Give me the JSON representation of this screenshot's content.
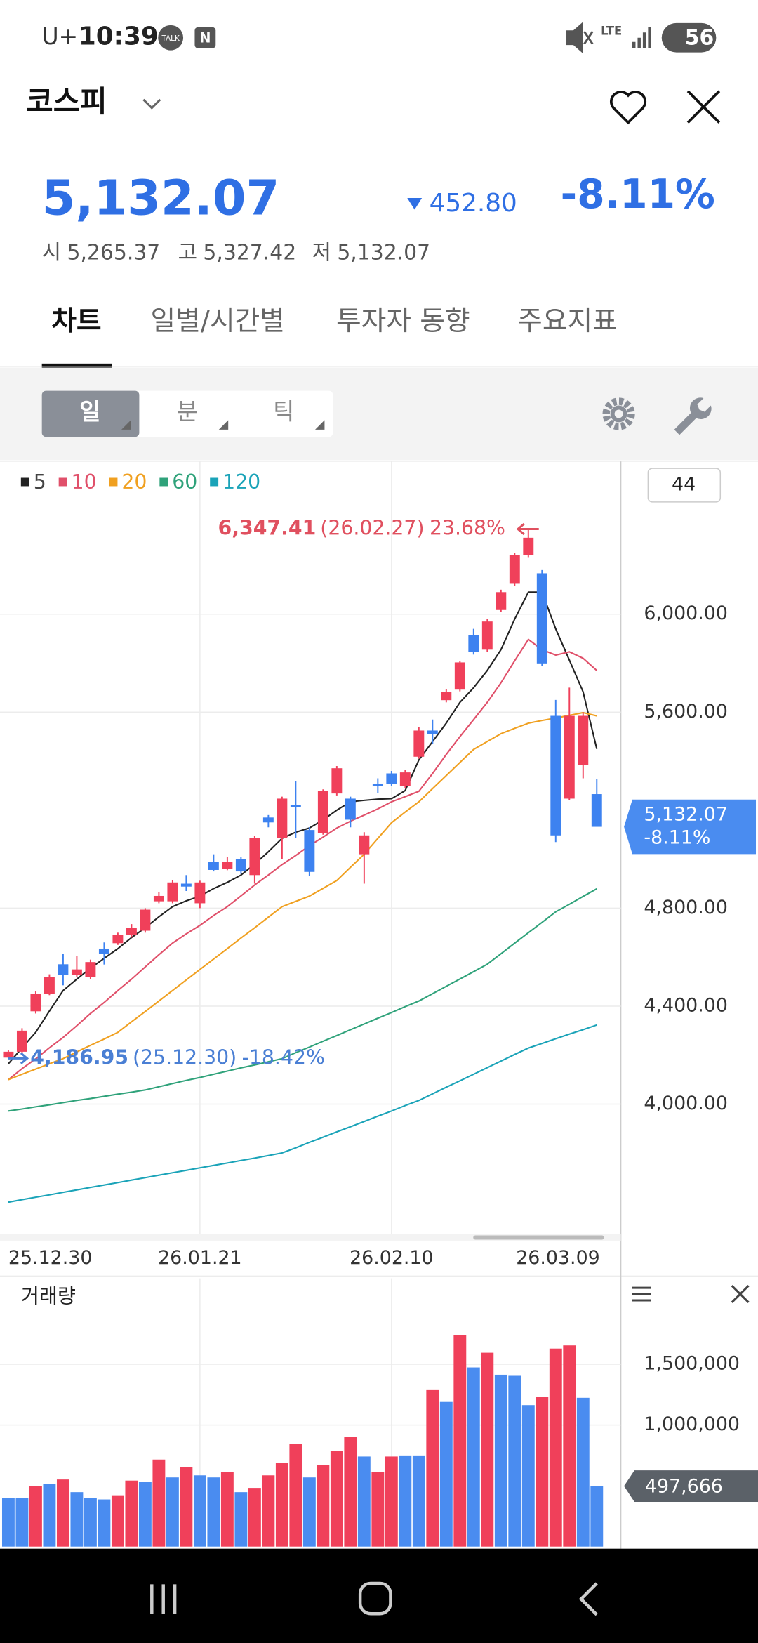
{
  "status_bar": {
    "carrier": "U+",
    "time": "10:39",
    "talk_icon": "TALK",
    "n_icon": "N",
    "network": "LTE",
    "battery": "56"
  },
  "header": {
    "title": "코스피"
  },
  "quote": {
    "price": "5,132.07",
    "change": "452.80",
    "change_pct": "-8.11%",
    "open_label": "시",
    "open": "5,265.37",
    "high_label": "고",
    "high": "5,327.42",
    "low_label": "저",
    "low": "5,132.07"
  },
  "tabs": [
    "차트",
    "일별/시간별",
    "투자자 동향",
    "주요지표"
  ],
  "periods": [
    "일",
    "분",
    "틱"
  ],
  "chart_data": [
    {
      "type": "candlestick",
      "visible_count": "44",
      "categories": [
        "25.12.30",
        null,
        null,
        null,
        null,
        null,
        null,
        null,
        null,
        null,
        null,
        null,
        null,
        null,
        "26.01.21",
        null,
        null,
        null,
        null,
        null,
        null,
        null,
        null,
        null,
        null,
        null,
        null,
        null,
        "26.02.10",
        null,
        null,
        null,
        null,
        null,
        null,
        null,
        null,
        null,
        null,
        null,
        null,
        null,
        null,
        "26.03.09"
      ],
      "open": [
        4190,
        4214,
        4379,
        4451,
        4571,
        4528,
        4520,
        4635,
        4657,
        4690,
        4708,
        4828,
        4828,
        4900,
        4820,
        4990,
        4960,
        4999,
        4935,
        5170,
        5085,
        5221,
        5119,
        5106,
        5268,
        5247,
        5020,
        5307,
        5350,
        5298,
        5418,
        5525,
        5649,
        5692,
        5914,
        5855,
        6017,
        6124,
        6240,
        6167,
        5585,
        5247,
        5384,
        5265.37
      ],
      "high": [
        4222,
        4310,
        4460,
        4530,
        4614,
        4605,
        4590,
        4660,
        4700,
        4735,
        4800,
        4865,
        4915,
        4935,
        4912,
        5020,
        5010,
        5010,
        5095,
        5180,
        5255,
        5320,
        5130,
        5285,
        5380,
        5255,
        5110,
        5330,
        5360,
        5365,
        5540,
        5570,
        5695,
        5810,
        5940,
        5980,
        6100,
        6250,
        6347.41,
        6180,
        5650,
        5700,
        5600,
        5327.42
      ],
      "low": [
        4186.95,
        4205,
        4370,
        4445,
        4485,
        4520,
        4510,
        4570,
        4650,
        4680,
        4700,
        4820,
        4820,
        4870,
        4800,
        4950,
        4955,
        4940,
        4900,
        5130,
        5000,
        5085,
        4930,
        5100,
        5260,
        5130,
        4900,
        5270,
        5300,
        5290,
        5410,
        5470,
        5640,
        5685,
        5835,
        5845,
        6010,
        6115,
        6230,
        5790,
        5070,
        5240,
        5330,
        5132.07
      ],
      "close": [
        4214,
        4300,
        4451,
        4520,
        4528,
        4550,
        4580,
        4614,
        4690,
        4720,
        4794,
        4850,
        4905,
        4888,
        4905,
        4956,
        4990,
        4950,
        5085,
        5150,
        5247,
        5213,
        4948,
        5277,
        5371,
        5161,
        5097,
        5298,
        5307,
        5354,
        5525,
        5512,
        5683,
        5803,
        5846,
        5970,
        6090,
        6240,
        6312,
        5799,
        5097,
        5585,
        5585,
        5132.07
      ],
      "up_color": "#f0405a",
      "down_color": "#3d82f0",
      "series": [
        {
          "name": "5",
          "color": "#222222",
          "values": [
            4165,
            4230,
            4293,
            4380,
            4464,
            4510,
            4555,
            4595,
            4635,
            4680,
            4720,
            4765,
            4806,
            4830,
            4849,
            4880,
            4905,
            4935,
            4980,
            5030,
            5085,
            5110,
            5127,
            5160,
            5200,
            5234,
            5240,
            5245,
            5247,
            5280,
            5405,
            5480,
            5555,
            5640,
            5700,
            5770,
            5855,
            5980,
            6090,
            6090,
            5940,
            5812,
            5683,
            5450
          ]
        },
        {
          "name": "10",
          "color": "#e0506a",
          "values": [
            4100,
            4145,
            4185,
            4230,
            4272,
            4320,
            4370,
            4415,
            4464,
            4510,
            4560,
            4610,
            4657,
            4695,
            4730,
            4770,
            4806,
            4850,
            4895,
            4935,
            4978,
            5015,
            5055,
            5090,
            5127,
            5155,
            5180,
            5205,
            5234,
            5255,
            5277,
            5350,
            5427,
            5500,
            5570,
            5640,
            5720,
            5810,
            5897,
            5855,
            5833,
            5846,
            5820,
            5770
          ]
        },
        {
          "name": "20",
          "color": "#f0a020",
          "values": [
            4100,
            4122,
            4143,
            4165,
            4186,
            4213,
            4240,
            4266,
            4293,
            4336,
            4378,
            4421,
            4464,
            4507,
            4550,
            4592,
            4635,
            4678,
            4720,
            4763,
            4806,
            4828,
            4849,
            4881,
            4913,
            4967,
            5020,
            5085,
            5149,
            5192,
            5234,
            5288,
            5341,
            5395,
            5448,
            5480,
            5512,
            5534,
            5555,
            5566,
            5576,
            5587,
            5598,
            5585
          ]
        },
        {
          "name": "60",
          "color": "#2fa27a",
          "values": [
            3972,
            3980,
            3989,
            3997,
            4006,
            4015,
            4023,
            4032,
            4041,
            4049,
            4058,
            4071,
            4084,
            4097,
            4109,
            4122,
            4135,
            4148,
            4160,
            4173,
            4186,
            4210,
            4233,
            4257,
            4280,
            4304,
            4327,
            4351,
            4374,
            4398,
            4421,
            4451,
            4481,
            4511,
            4541,
            4571,
            4614,
            4657,
            4700,
            4742,
            4785,
            4816,
            4848,
            4879
          ]
        },
        {
          "name": "120",
          "color": "#1aa3b8",
          "values": [
            3600,
            3610,
            3620,
            3630,
            3640,
            3650,
            3660,
            3670,
            3680,
            3690,
            3700,
            3710,
            3720,
            3730,
            3740,
            3750,
            3760,
            3770,
            3780,
            3790,
            3801,
            3822,
            3844,
            3865,
            3887,
            3908,
            3929,
            3951,
            3972,
            3994,
            4015,
            4042,
            4069,
            4095,
            4122,
            4149,
            4176,
            4203,
            4229,
            4248,
            4267,
            4286,
            4304,
            4323
          ]
        }
      ],
      "ylim": [
        3460,
        6625
      ],
      "yticks": [
        {
          "value": 4000,
          "label": "4,000.00"
        },
        {
          "value": 4400,
          "label": "4,400.00"
        },
        {
          "value": 4800,
          "label": "4,800.00"
        },
        {
          "value": 5600,
          "label": "5,600.00"
        },
        {
          "value": 6000,
          "label": "6,000.00"
        }
      ],
      "grid": true,
      "max_annotation": {
        "index": 38,
        "value": 6347.41,
        "label": "6,347.41",
        "date": "(26.02.27)",
        "pct": "23.68%",
        "color": "#e0505f"
      },
      "min_annotation": {
        "index": 0,
        "value": 4186.95,
        "label": "4,186.95",
        "date": "(25.12.30)",
        "pct": "-18.42%",
        "color": "#4a7fd4"
      },
      "current": {
        "value": 5132.07,
        "label": "5,132.07",
        "pct": "-8.11%",
        "color": "#4a8cf0"
      }
    },
    {
      "type": "bar",
      "title": "거래량",
      "values": [
        397000,
        397000,
        500000,
        517000,
        552000,
        448000,
        397000,
        388000,
        422000,
        543000,
        534000,
        716000,
        569000,
        655000,
        586000,
        569000,
        612000,
        448000,
        483000,
        586000,
        690000,
        845000,
        569000,
        672000,
        784000,
        905000,
        741000,
        612000,
        741000,
        750000,
        750000,
        1293000,
        1190000,
        1741000,
        1474000,
        1595000,
        1414000,
        1405000,
        1164000,
        1233000,
        1629000,
        1655000,
        1224000,
        497666
      ],
      "colors": [
        "#4a8cf0",
        "#4a8cf0",
        "#f0405a",
        "#4a8cf0",
        "#f0405a",
        "#4a8cf0",
        "#4a8cf0",
        "#4a8cf0",
        "#f0405a",
        "#f0405a",
        "#4a8cf0",
        "#f0405a",
        "#4a8cf0",
        "#f0405a",
        "#4a8cf0",
        "#4a8cf0",
        "#f0405a",
        "#4a8cf0",
        "#f0405a",
        "#f0405a",
        "#f0405a",
        "#f0405a",
        "#4a8cf0",
        "#f0405a",
        "#f0405a",
        "#f0405a",
        "#4a8cf0",
        "#f0405a",
        "#f0405a",
        "#4a8cf0",
        "#4a8cf0",
        "#f0405a",
        "#4a8cf0",
        "#f0405a",
        "#4a8cf0",
        "#f0405a",
        "#4a8cf0",
        "#4a8cf0",
        "#4a8cf0",
        "#f0405a",
        "#f0405a",
        "#f0405a",
        "#4a8cf0",
        "#4a8cf0"
      ],
      "ylim": [
        0,
        2207000
      ],
      "yticks": [
        {
          "value": 1000000,
          "label": "1,000,000"
        },
        {
          "value": 1500000,
          "label": "1,500,000"
        }
      ],
      "grid": true,
      "current": {
        "value": 497666,
        "label": "497,666",
        "color": "#5b6168"
      }
    }
  ]
}
